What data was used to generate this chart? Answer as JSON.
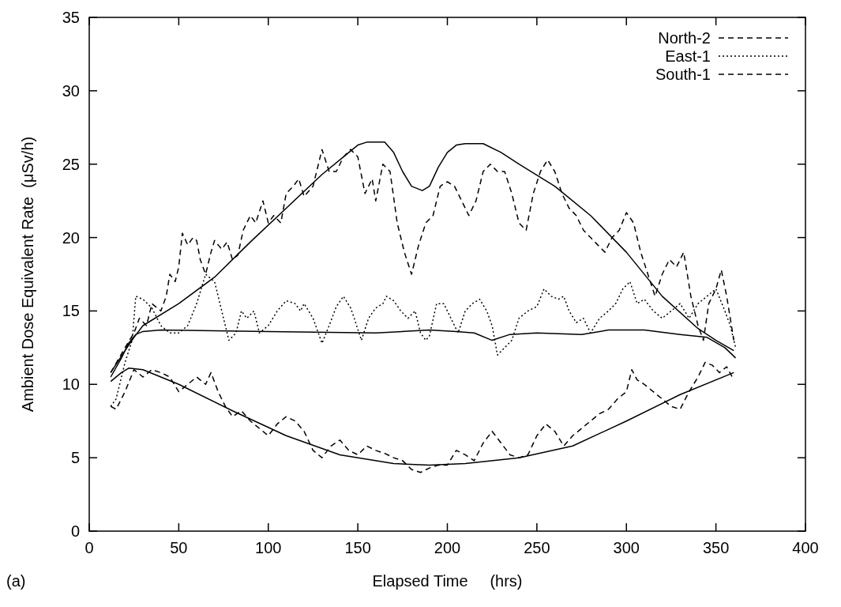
{
  "chart_data": {
    "type": "line",
    "xlabel": "Elapsed Time     (hrs)",
    "ylabel": "Ambient Dose Equivalent Rate  (μSv/h)",
    "xlim": [
      0,
      400
    ],
    "xticks": [
      0,
      50,
      100,
      150,
      200,
      250,
      300,
      350,
      400
    ],
    "ylim": [
      0,
      35
    ],
    "yticks": [
      0,
      5,
      10,
      15,
      20,
      25,
      30,
      35
    ],
    "grid": false,
    "legend": "top right",
    "marker": "none",
    "annotations": [
      "(a)"
    ],
    "series": [
      {
        "name": "North-2",
        "color": "#000000",
        "line_style": "dashed",
        "x": [
          12,
          20,
          25,
          28,
          32,
          35,
          40,
          43,
          45,
          48,
          50,
          52,
          55,
          58,
          60,
          62,
          65,
          68,
          70,
          74,
          77,
          80,
          83,
          86,
          90,
          93,
          97,
          100,
          103,
          107,
          110,
          114,
          117,
          120,
          125,
          130,
          134,
          138,
          142,
          146,
          150,
          154,
          158,
          160,
          164,
          168,
          172,
          176,
          180,
          184,
          188,
          192,
          196,
          200,
          204,
          208,
          212,
          216,
          220,
          224,
          228,
          232,
          236,
          240,
          244,
          248,
          252,
          256,
          260,
          264,
          268,
          272,
          276,
          280,
          284,
          288,
          292,
          296,
          300,
          304,
          308,
          312,
          316,
          320,
          324,
          328,
          332,
          336,
          340,
          343,
          346,
          350,
          353,
          356,
          360
        ],
        "values": [
          10.8,
          12.5,
          13.5,
          14.5,
          14,
          15.5,
          15,
          16,
          17.5,
          17,
          18,
          20.3,
          19.5,
          20,
          19.8,
          18.5,
          17.5,
          19,
          19.8,
          19.2,
          19.7,
          18.5,
          18.8,
          20.5,
          21.5,
          21,
          22.5,
          21,
          21.5,
          21,
          23,
          23.5,
          24,
          22.8,
          23.5,
          26,
          24.5,
          24.5,
          25.5,
          26,
          25.5,
          23,
          24,
          22.5,
          25,
          24.5,
          21,
          19,
          17.5,
          19.5,
          21,
          21.5,
          23.5,
          23.8,
          23.5,
          22.5,
          21.5,
          22.5,
          24.5,
          25,
          24.5,
          24.5,
          23,
          21,
          20.5,
          23,
          24.5,
          25.3,
          24.5,
          23,
          22,
          21.5,
          20.5,
          20,
          19.5,
          19,
          20,
          20.5,
          21.7,
          21,
          19,
          17.5,
          16,
          17.5,
          18.5,
          18,
          19,
          16,
          14,
          13,
          15.5,
          16.5,
          17.8,
          16,
          13
        ]
      },
      {
        "name": "East-1",
        "color": "#000000",
        "line_style": "dotted",
        "x": [
          12,
          15,
          20,
          24,
          26,
          30,
          35,
          40,
          45,
          50,
          55,
          60,
          65,
          70,
          73,
          78,
          82,
          85,
          88,
          92,
          95,
          100,
          105,
          110,
          115,
          118,
          120,
          125,
          130,
          134,
          138,
          142,
          146,
          148,
          152,
          156,
          160,
          164,
          166,
          170,
          174,
          178,
          182,
          185,
          188,
          190,
          194,
          198,
          202,
          206,
          210,
          214,
          218,
          222,
          225,
          228,
          232,
          236,
          240,
          245,
          250,
          254,
          258,
          262,
          265,
          268,
          272,
          276,
          280,
          285,
          290,
          294,
          298,
          302,
          306,
          310,
          315,
          320,
          325,
          330,
          335,
          340,
          345,
          350,
          355,
          358,
          361
        ],
        "values": [
          8.5,
          9,
          11.5,
          13,
          16,
          15.8,
          15.2,
          14,
          13.5,
          13.5,
          14,
          15.5,
          17.5,
          17,
          15.5,
          13,
          13.5,
          15,
          14.5,
          15,
          13.5,
          14,
          15,
          15.7,
          15.5,
          15,
          15.5,
          14.5,
          12.8,
          14,
          15.3,
          16,
          15.2,
          14.5,
          13,
          14.5,
          15.2,
          15.5,
          16,
          15.7,
          15,
          14.5,
          15,
          13.5,
          13,
          13.3,
          15.5,
          15.5,
          14.5,
          13.5,
          15,
          15.5,
          15.8,
          15,
          14,
          12,
          12.5,
          13,
          14.5,
          15,
          15.3,
          16.5,
          16,
          15.8,
          16,
          15,
          14.2,
          14.5,
          13.5,
          14.5,
          15,
          15.5,
          16.5,
          17,
          15.5,
          15.8,
          15,
          14.5,
          15,
          15.5,
          14.5,
          15.5,
          16,
          16.5,
          15,
          14,
          12.5
        ]
      },
      {
        "name": "South-1",
        "color": "#000000",
        "line_style": "dashed",
        "x": [
          12,
          15,
          20,
          25,
          30,
          35,
          40,
          45,
          50,
          55,
          60,
          65,
          68,
          72,
          76,
          80,
          85,
          90,
          95,
          100,
          105,
          110,
          115,
          120,
          125,
          130,
          135,
          140,
          145,
          150,
          155,
          160,
          165,
          170,
          175,
          180,
          185,
          190,
          195,
          200,
          205,
          210,
          215,
          220,
          225,
          230,
          235,
          240,
          245,
          250,
          255,
          260,
          265,
          270,
          275,
          280,
          285,
          290,
          295,
          300,
          303,
          306,
          310,
          315,
          320,
          325,
          330,
          335,
          340,
          344,
          348,
          352,
          356,
          360
        ],
        "values": [
          8.5,
          8.3,
          9.5,
          11,
          10.5,
          11,
          10.8,
          10.5,
          9.5,
          10,
          10.5,
          10,
          10.8,
          9.5,
          8.5,
          7.8,
          8.2,
          7.5,
          7,
          6.5,
          7.3,
          7.8,
          7.5,
          6.8,
          5.5,
          5,
          5.8,
          6.2,
          5.5,
          5.2,
          5.8,
          5.5,
          5.3,
          5,
          4.8,
          4.2,
          4,
          4.3,
          4.5,
          4.5,
          5.5,
          5.2,
          4.8,
          6,
          6.8,
          6,
          5.2,
          5,
          5.2,
          6.5,
          7.3,
          6.8,
          5.8,
          6.5,
          7,
          7.5,
          8,
          8.3,
          9,
          9.5,
          11,
          10.3,
          10,
          9.5,
          9,
          8.5,
          8.3,
          9.5,
          10.5,
          11.5,
          11.3,
          10.8,
          11.2,
          10.3
        ]
      },
      {
        "color": "#000000",
        "line_style": "solid",
        "x": [
          12,
          20,
          25,
          30,
          50,
          70,
          90,
          110,
          130,
          145,
          150,
          155,
          165,
          170,
          175,
          180,
          186,
          190,
          195,
          200,
          205,
          210,
          220,
          230,
          240,
          260,
          280,
          300,
          320,
          340,
          350,
          360
        ],
        "values": [
          10.8,
          12.3,
          13.2,
          14,
          15.5,
          17.3,
          19.7,
          22,
          24.3,
          25.8,
          26.3,
          26.5,
          26.5,
          25.8,
          24.5,
          23.5,
          23.2,
          23.5,
          24.8,
          25.8,
          26.3,
          26.4,
          26.4,
          25.8,
          25,
          23.5,
          21.5,
          19,
          16,
          13.8,
          13,
          12.3
        ]
      },
      {
        "color": "#000000",
        "line_style": "solid",
        "x": [
          12,
          18,
          22,
          26,
          30,
          40,
          100,
          160,
          190,
          205,
          215,
          225,
          235,
          250,
          275,
          290,
          310,
          330,
          345,
          355,
          361
        ],
        "values": [
          10.5,
          11.8,
          12.8,
          13.4,
          13.6,
          13.7,
          13.6,
          13.5,
          13.7,
          13.6,
          13.5,
          13,
          13.4,
          13.5,
          13.4,
          13.7,
          13.7,
          13.4,
          13.2,
          12.5,
          11.8
        ]
      },
      {
        "color": "#000000",
        "line_style": "solid",
        "x": [
          12,
          18,
          22,
          30,
          50,
          80,
          110,
          140,
          170,
          190,
          210,
          240,
          270,
          300,
          330,
          360
        ],
        "values": [
          10.2,
          10.8,
          11.1,
          11,
          10,
          8.2,
          6.5,
          5.2,
          4.6,
          4.5,
          4.6,
          5,
          5.8,
          7.5,
          9.3,
          10.8
        ]
      }
    ]
  }
}
